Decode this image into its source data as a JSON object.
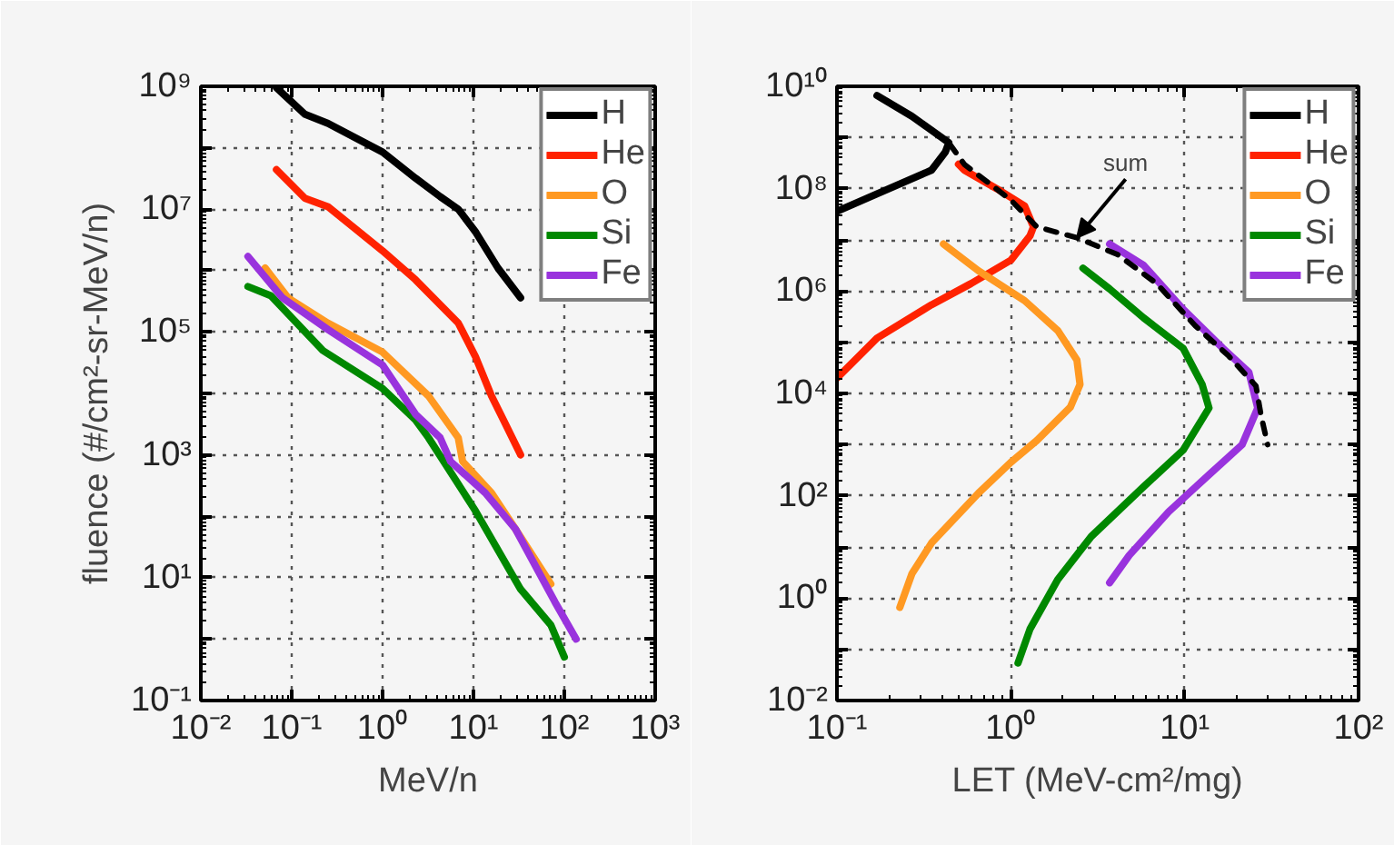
{
  "chart_data": [
    {
      "type": "line",
      "xlabel": "MeV/n",
      "ylabel": "fluence (#/cm²-sr-MeV/n)",
      "log": "xy",
      "grid": true,
      "legend": "top right",
      "line_style": "solid",
      "xlim": [
        0.01,
        1000
      ],
      "ylim": [
        0.1,
        1000000000.0
      ],
      "xticks": [
        {
          "value": 0.01,
          "label": "10⁻²"
        },
        {
          "value": 0.1,
          "label": "10⁻¹"
        },
        {
          "value": 1,
          "label": "10⁰"
        },
        {
          "value": 10,
          "label": "10¹"
        },
        {
          "value": 100,
          "label": "10²"
        },
        {
          "value": 1000,
          "label": "10³"
        }
      ],
      "yticks": [
        {
          "value": 0.1,
          "label": "10⁻¹"
        },
        {
          "value": 1,
          "label": null
        },
        {
          "value": 10,
          "label": "10¹"
        },
        {
          "value": 100,
          "label": null
        },
        {
          "value": 1000,
          "label": "10³"
        },
        {
          "value": 10000,
          "label": null
        },
        {
          "value": 100000,
          "label": "10⁵"
        },
        {
          "value": 1000000,
          "label": null
        },
        {
          "value": 10000000,
          "label": "10⁷"
        },
        {
          "value": 100000000,
          "label": null
        },
        {
          "value": 1000000000,
          "label": "10⁹"
        }
      ],
      "series": [
        {
          "name": "H",
          "color": "#000000",
          "x": [
            0.068,
            0.14,
            0.25,
            1,
            2.3,
            4.3,
            6.8,
            10.5,
            18.6,
            33
          ],
          "values": [
            950000000.0,
            350000000.0,
            250000000.0,
            85000000.0,
            32000000.0,
            16000000.0,
            10000000.0,
            4300000.0,
            1100000.0,
            360000.0
          ]
        },
        {
          "name": "He",
          "color": "#ff2200",
          "x": [
            0.068,
            0.14,
            0.25,
            1,
            2.3,
            6.8,
            10.5,
            15.8,
            21.4,
            33
          ],
          "values": [
            44000000.0,
            15000000.0,
            11000000.0,
            2100000.0,
            710000.0,
            140000.0,
            40000.0,
            9100.0,
            3700.0,
            1000.0
          ]
        },
        {
          "name": "O",
          "color": "#ff9922",
          "x": [
            0.051,
            0.091,
            0.25,
            1,
            3.2,
            6.8,
            7.6,
            15.8,
            29,
            71
          ],
          "values": [
            1100000.0,
            360000.0,
            140000.0,
            47000.0,
            9100.0,
            1900.0,
            780,
            240,
            62,
            7.9
          ]
        },
        {
          "name": "Si",
          "color": "#008800",
          "x": [
            0.033,
            0.059,
            0.22,
            1,
            2.3,
            3.2,
            10.5,
            33,
            71,
            100
          ],
          "values": [
            550000.0,
            390000.0,
            50000.0,
            12000.0,
            3700.0,
            1900.0,
            123,
            6.5,
            1.7,
            0.51
          ]
        },
        {
          "name": "Fe",
          "color": "#9933dd",
          "x": [
            0.033,
            0.079,
            0.25,
            1,
            2.3,
            4.3,
            5.6,
            13.5,
            29,
            79,
            135
          ],
          "values": [
            1700000.0,
            360000.0,
            110000.0,
            29000.0,
            4600.0,
            1900.0,
            780,
            240,
            62,
            4,
            1
          ]
        }
      ]
    },
    {
      "type": "line",
      "xlabel": "LET (MeV-cm²/mg)",
      "log": "xy",
      "grid": true,
      "legend": "top right",
      "line_style": "solid",
      "xlim": [
        0.1,
        100
      ],
      "ylim": [
        0.01,
        10000000000.0
      ],
      "xticks": [
        {
          "value": 0.1,
          "label": "10⁻¹"
        },
        {
          "value": 1,
          "label": "10⁰"
        },
        {
          "value": 10,
          "label": "10¹"
        },
        {
          "value": 100,
          "label": "10²"
        }
      ],
      "yticks": [
        {
          "value": 0.01,
          "label": "10⁻²"
        },
        {
          "value": 0.1,
          "label": null
        },
        {
          "value": 1,
          "label": "10⁰"
        },
        {
          "value": 10,
          "label": null
        },
        {
          "value": 100,
          "label": "10²"
        },
        {
          "value": 1000,
          "label": null
        },
        {
          "value": 10000,
          "label": "10⁴"
        },
        {
          "value": 100000,
          "label": null
        },
        {
          "value": 1000000,
          "label": "10⁶"
        },
        {
          "value": 10000000,
          "label": null
        },
        {
          "value": 100000000,
          "label": "10⁸"
        },
        {
          "value": 1000000000,
          "label": null
        },
        {
          "value": 10000000000,
          "label": "10¹⁰"
        }
      ],
      "annotations": [
        {
          "text": "sum",
          "x": 2.4,
          "y": 11000000.0
        }
      ],
      "series": [
        {
          "name": "H",
          "color": "#000000",
          "x": [
            0.1,
            0.17,
            0.35,
            0.42,
            0.44,
            0.27,
            0.17
          ],
          "values": [
            36000000.0,
            79000000.0,
            230000000.0,
            520000000.0,
            790000000.0,
            2600000000.0,
            6600000000.0
          ]
        },
        {
          "name": "He",
          "color": "#ff2200",
          "x": [
            0.1,
            0.17,
            0.35,
            0.59,
            1,
            1.29,
            1.35,
            1.2,
            0.83,
            0.54,
            0.5
          ],
          "values": [
            20000.0,
            120000.0,
            540000.0,
            1400000.0,
            4000000.0,
            12000000.0,
            18000000.0,
            46000000.0,
            100000000.0,
            230000000.0,
            300000000.0
          ]
        },
        {
          "name": "O",
          "color": "#ff9922",
          "x": [
            0.41,
            0.65,
            1.2,
            1.86,
            2.4,
            2.5,
            2.2,
            1.41,
            1,
            0.65,
            0.35,
            0.27,
            0.23
          ],
          "values": [
            8300000.0,
            2500000.0,
            650000.0,
            170000.0,
            45000.0,
            15000.0,
            5400.0,
            1200.0,
            450,
            112,
            12,
            3,
            0.66
          ]
        },
        {
          "name": "Si",
          "color": "#008800",
          "x": [
            2.6,
            3.7,
            5.8,
            9.8,
            12.6,
            13.8,
            9.8,
            5.8,
            2.9,
            1.86,
            1.29,
            1.1
          ],
          "values": [
            2800000.0,
            1100000.0,
            300000.0,
            76000.0,
            15000.0,
            5200.0,
            780,
            150,
            16,
            2.3,
            0.25,
            0.054
          ]
        },
        {
          "name": "Fe",
          "color": "#9933dd",
          "x": [
            3.7,
            5.8,
            9.8,
            16.6,
            23.4,
            26.3,
            21.4,
            13.8,
            8.1,
            4.8,
            3.7
          ],
          "values": [
            8300000.0,
            3200000.0,
            440000.0,
            76000.0,
            26000.0,
            5200.0,
            1000.0,
            257,
            49,
            6.9,
            2
          ]
        },
        {
          "color": "#000000",
          "line_style": "dashed",
          "x": [
            0.17,
            0.27,
            0.44,
            0.54,
            1,
            1.41,
            2.4,
            4.1,
            6.9,
            11.5,
            17.8,
            25.7,
            27.5,
            30
          ],
          "values": [
            6600000000.0,
            2600000000.0,
            790000000.0,
            300000000.0,
            60000000.0,
            18000000.0,
            11000000.0,
            5200000.0,
            1400000.0,
            210000.0,
            55000.0,
            14000.0,
            3700.0,
            1000.0
          ]
        }
      ]
    }
  ]
}
